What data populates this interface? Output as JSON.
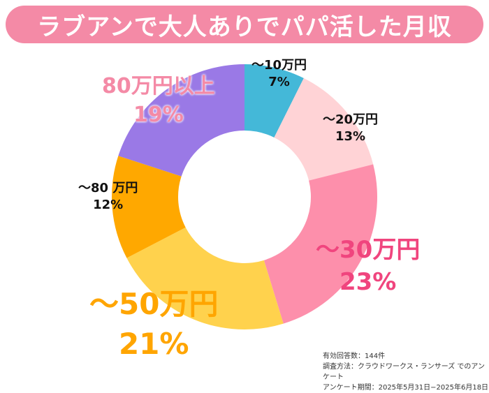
{
  "title": "ラブアンで大人ありでパパ活した月収",
  "chart_data": {
    "type": "pie",
    "donut": true,
    "title": "ラブアンで大人ありでパパ活した月収",
    "categories": [
      "〜10万円",
      "〜20万円",
      "〜30万円",
      "〜50万円",
      "〜80 万円",
      "80万円以上"
    ],
    "values": [
      7,
      13,
      23,
      21,
      12,
      19
    ],
    "labels": [
      "7%",
      "13%",
      "23%",
      "21%",
      "12%",
      "19%"
    ],
    "colors": [
      "#44b8d8",
      "#ffd3d6",
      "#fd8fab",
      "#ffd24d",
      "#ffa800",
      "#9a79e6"
    ]
  },
  "notes": [
    "有効回答数：144件",
    "調査方法：クラウドワークス・ランサーズ でのアンケート",
    "アンケート期間：2025年5月31日−2025年6月18日"
  ]
}
